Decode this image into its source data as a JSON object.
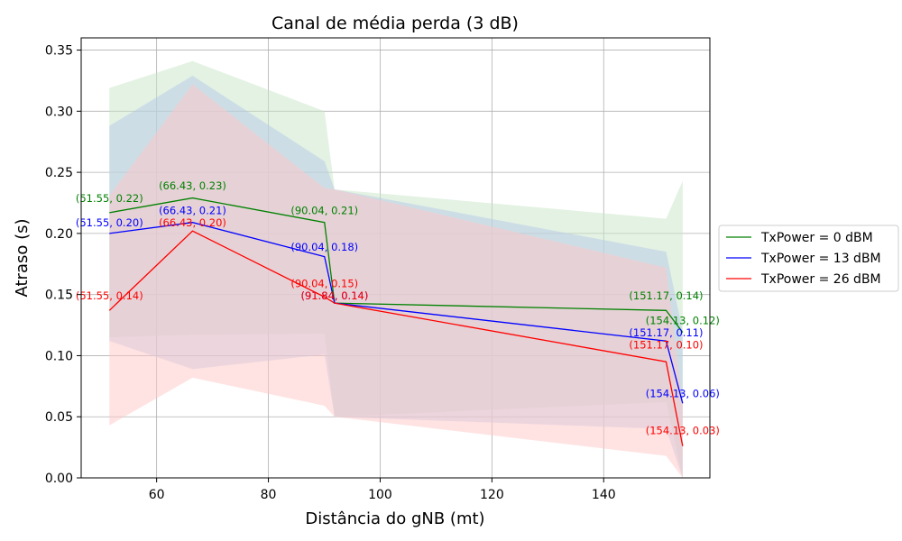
{
  "chart_data": {
    "type": "line",
    "title": "Canal de média perda (3 dB)",
    "xlabel": "Distância do gNB (mt)",
    "ylabel": "Atraso (s)",
    "xlim": [
      46.5,
      159
    ],
    "ylim": [
      0,
      0.36
    ],
    "xticks": [
      60,
      80,
      100,
      120,
      140
    ],
    "yticks": [
      0.0,
      0.05,
      0.1,
      0.15,
      0.2,
      0.25,
      0.3,
      0.35
    ],
    "grid": true,
    "legend_position": "right, outside plot",
    "x": [
      51.55,
      66.43,
      90.04,
      91.84,
      151.17,
      154.13
    ],
    "series": [
      {
        "name": "TxPower = 0 dBM",
        "color": "#008000",
        "fill_color": "#c8e6c8",
        "values": [
          0.217,
          0.229,
          0.209,
          0.143,
          0.137,
          0.119
        ],
        "upper": [
          0.319,
          0.341,
          0.3,
          0.236,
          0.212,
          0.243
        ],
        "lower": [
          0.115,
          0.117,
          0.118,
          0.05,
          0.062,
          0.0
        ],
        "annotations": [
          "(51.55, 0.22)",
          "(66.43, 0.23)",
          "(90.04, 0.21)",
          "(151.17, 0.14)",
          "(154.13, 0.12)"
        ]
      },
      {
        "name": "TxPower = 13 dBM",
        "color": "#0000ff",
        "fill_color": "#b8c8e8",
        "values": [
          0.2,
          0.209,
          0.181,
          0.143,
          0.112,
          0.061
        ],
        "upper": [
          0.288,
          0.329,
          0.259,
          0.236,
          0.185,
          0.12
        ],
        "lower": [
          0.112,
          0.089,
          0.101,
          0.05,
          0.04,
          0.0
        ],
        "annotations": [
          "(51.55, 0.20)",
          "(66.43, 0.21)",
          "(90.04, 0.18)",
          "(91.84, 0.14)",
          "(151.17, 0.11)",
          "(154.13, 0.06)"
        ]
      },
      {
        "name": "TxPower = 26 dBM",
        "color": "#ff0000",
        "fill_color": "#ffc8c8",
        "values": [
          0.137,
          0.202,
          0.148,
          0.143,
          0.095,
          0.026
        ],
        "upper": [
          0.231,
          0.322,
          0.237,
          0.236,
          0.172,
          0.06
        ],
        "lower": [
          0.043,
          0.082,
          0.059,
          0.05,
          0.018,
          0.0
        ],
        "annotations": [
          "(51.55, 0.14)",
          "(66.43, 0.20)",
          "(90.04, 0.15)",
          "(91.84, 0.14)",
          "(151.17, 0.10)",
          "(154.13, 0.03)"
        ]
      }
    ]
  }
}
